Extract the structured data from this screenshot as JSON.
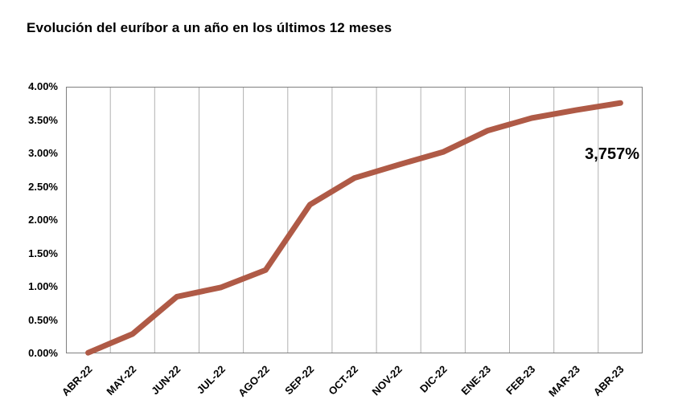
{
  "title": "Evolución del euríbor a un año en los últimos 12 meses",
  "chart_data": {
    "type": "line",
    "title": "Evolución del euríbor a un año en los últimos 12 meses",
    "categories": [
      "ABR-22",
      "MAY-22",
      "JUN-22",
      "JUL-22",
      "AGO-22",
      "SEP-22",
      "OCT-22",
      "NOV-22",
      "DIC-22",
      "ENE-23",
      "FEB-23",
      "MAR-23",
      "ABR-23"
    ],
    "values": [
      0.01,
      0.29,
      0.85,
      0.99,
      1.25,
      2.23,
      2.63,
      2.83,
      3.02,
      3.34,
      3.53,
      3.65,
      3.757
    ],
    "unit": "%",
    "y_axis": {
      "min": 0,
      "max": 4,
      "step": 0.5,
      "tick_labels": [
        "4.00%",
        "3.50%",
        "3.00%",
        "2.50%",
        "2.00%",
        "1.50%",
        "1.00%",
        "0.50%",
        "0.00%"
      ]
    },
    "annotation": "3,757%",
    "line_color": "#af5a46",
    "grid": {
      "vertical": true,
      "horizontal": false
    },
    "gridline_color": "#b0b0b0",
    "border_color": "#7f7f7f",
    "legend": "none"
  }
}
